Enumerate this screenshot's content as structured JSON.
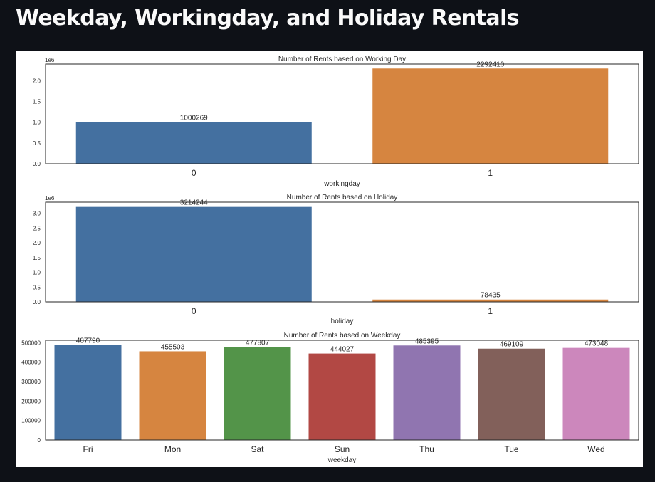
{
  "page": {
    "title": "Weekday, Workingday, and Holiday Rentals"
  },
  "chart_data": [
    {
      "type": "bar",
      "title": "Number of Rents based on Working Day",
      "xlabel": "workingday",
      "ylabel": "",
      "categories": [
        "0",
        "1"
      ],
      "values": [
        1000269,
        2292410
      ],
      "colors": [
        "#4470a0",
        "#d68540"
      ],
      "ylim": [
        0,
        2400000
      ],
      "yticks": [
        0,
        0.5,
        1.0,
        1.5,
        2.0
      ],
      "ytick_labels": [
        "0.0",
        "0.5",
        "1.0",
        "1.5",
        "2.0"
      ],
      "yscale_label": "1e6",
      "grid": false
    },
    {
      "type": "bar",
      "title": "Number of Rents based on Holiday",
      "xlabel": "holiday",
      "ylabel": "",
      "categories": [
        "0",
        "1"
      ],
      "values": [
        3214244,
        78435
      ],
      "colors": [
        "#4470a0",
        "#d68540"
      ],
      "ylim": [
        0,
        3375000
      ],
      "yticks": [
        0,
        0.5,
        1.0,
        1.5,
        2.0,
        2.5,
        3.0
      ],
      "ytick_labels": [
        "0.0",
        "0.5",
        "1.0",
        "1.5",
        "2.0",
        "2.5",
        "3.0"
      ],
      "yscale_label": "1e6",
      "grid": false
    },
    {
      "type": "bar",
      "title": "Number of Rents based on Weekday",
      "xlabel": "weekday",
      "ylabel": "",
      "categories": [
        "Fri",
        "Mon",
        "Sat",
        "Sun",
        "Thu",
        "Tue",
        "Wed"
      ],
      "values": [
        487790,
        455503,
        477807,
        444027,
        485395,
        469109,
        473048
      ],
      "colors": [
        "#4470a0",
        "#d68540",
        "#539449",
        "#b24844",
        "#9075b0",
        "#82605a",
        "#cc87bc"
      ],
      "ylim": [
        0,
        512000
      ],
      "yticks": [
        0,
        100000,
        200000,
        300000,
        400000,
        500000
      ],
      "ytick_labels": [
        "0",
        "100000",
        "200000",
        "300000",
        "400000",
        "500000"
      ],
      "yscale_label": "",
      "grid": false
    }
  ]
}
